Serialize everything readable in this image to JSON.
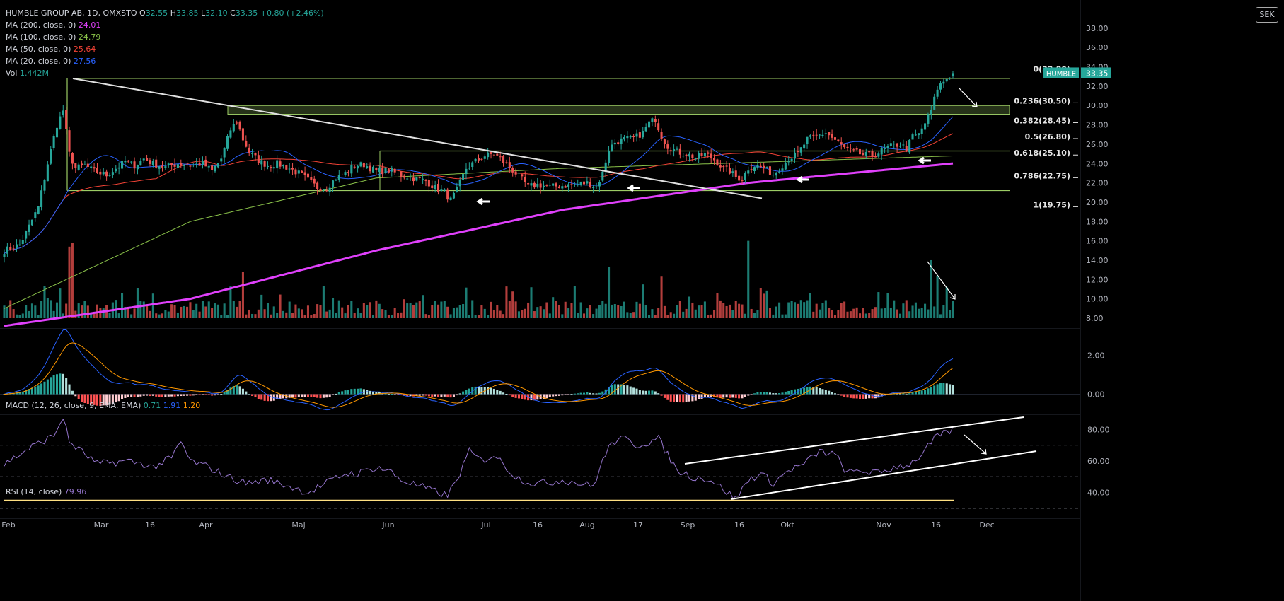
{
  "header": {
    "symbol": "HUMBLE GROUP AB, 1D, OMXSTO",
    "o_label": "O",
    "o": "32.55",
    "h_label": "H",
    "h": "33.85",
    "l_label": "L",
    "l": "32.10",
    "c_label": "C",
    "c": "33.35",
    "change": "+0.80 (+2.46%)"
  },
  "currency": "SEK",
  "indicators": [
    {
      "label": "MA (200, close, 0)",
      "value": "24.01",
      "color": "#e040fb"
    },
    {
      "label": "MA (100, close, 0)",
      "value": "24.79",
      "color": "#8bc34a"
    },
    {
      "label": "MA (50, close, 0)",
      "value": "25.64",
      "color": "#f44336"
    },
    {
      "label": "MA (20, close, 0)",
      "value": "27.56",
      "color": "#2962ff"
    },
    {
      "label": "Vol",
      "value": "1.442M",
      "color": "#26a69a"
    }
  ],
  "macd": {
    "label": "MACD (12, 26, close, 9, EMA, EMA)",
    "v1": "0.71",
    "v2": "1.91",
    "v3": "1.20",
    "ticks": [
      "2.00",
      "0.00"
    ]
  },
  "rsi": {
    "label": "RSI (14, close)",
    "value": "79.96",
    "ticks": [
      "80.00",
      "60.00",
      "40.00"
    ]
  },
  "price_badge": {
    "name": "HUMBLE",
    "value": "33.35"
  },
  "colors": {
    "up": "#26a69a",
    "down": "#ef5350",
    "ma200": "#e040fb",
    "ma100": "#8bc34a",
    "ma50": "#f44336",
    "ma20": "#2962ff",
    "box": "#9ccc65",
    "rsi": "#9575cd"
  },
  "chart_data": {
    "type": "candlestick",
    "x_ticks": [
      "Feb",
      "Mar",
      "16",
      "Apr",
      "Maj",
      "Jun",
      "Jul",
      "16",
      "Aug",
      "17",
      "Sep",
      "16",
      "Okt",
      "Nov",
      "16",
      "Dec"
    ],
    "y_ticks": [
      "38.00",
      "36.00",
      "34.00",
      "32.00",
      "30.00",
      "28.00",
      "26.00",
      "24.00",
      "22.00",
      "20.00",
      "18.00",
      "16.00",
      "14.00",
      "12.00",
      "10.00",
      "8.00"
    ],
    "ylim": [
      8,
      39
    ],
    "fib_levels": [
      {
        "label": "0(33.80)",
        "value": 33.8
      },
      {
        "label": "0.236(30.50)",
        "value": 30.5
      },
      {
        "label": "0.382(28.45)",
        "value": 28.45
      },
      {
        "label": "0.5(26.80)",
        "value": 26.8
      },
      {
        "label": "0.618(25.10)",
        "value": 25.1
      },
      {
        "label": "0.786(22.75)",
        "value": 22.75
      },
      {
        "label": "1(19.75)",
        "value": 19.75
      }
    ],
    "horizontal_levels": [
      32.8,
      30.0,
      29.1,
      25.3,
      21.2
    ],
    "close_anchors": [
      [
        0,
        15
      ],
      [
        5,
        15.6
      ],
      [
        8,
        17.5
      ],
      [
        11,
        19.5
      ],
      [
        14,
        24
      ],
      [
        17,
        28
      ],
      [
        19,
        29.5
      ],
      [
        21,
        25
      ],
      [
        23,
        23.5
      ],
      [
        26,
        23.8
      ],
      [
        29,
        23.2
      ],
      [
        33,
        22.8
      ],
      [
        36,
        23.5
      ],
      [
        39,
        24.2
      ],
      [
        42,
        23.8
      ],
      [
        45,
        24.5
      ],
      [
        48,
        24
      ],
      [
        52,
        23.6
      ],
      [
        56,
        24
      ],
      [
        60,
        23.8
      ],
      [
        64,
        24
      ],
      [
        67,
        23.2
      ],
      [
        70,
        24.5
      ],
      [
        73,
        27.5
      ],
      [
        75,
        28.4
      ],
      [
        77,
        26.5
      ],
      [
        79,
        25.2
      ],
      [
        82,
        24.3
      ],
      [
        85,
        23.8
      ],
      [
        88,
        24
      ],
      [
        92,
        23.5
      ],
      [
        96,
        22.8
      ],
      [
        99,
        22
      ],
      [
        101,
        21.5
      ],
      [
        104,
        21.5
      ],
      [
        107,
        22.5
      ],
      [
        110,
        23
      ],
      [
        113,
        23.8
      ],
      [
        116,
        23.9
      ],
      [
        120,
        23.2
      ],
      [
        124,
        23.3
      ],
      [
        128,
        22.8
      ],
      [
        132,
        22.5
      ],
      [
        136,
        22.2
      ],
      [
        139,
        21.5
      ],
      [
        142,
        21
      ],
      [
        144,
        20.2
      ],
      [
        146,
        21.2
      ],
      [
        149,
        23.5
      ],
      [
        152,
        24.2
      ],
      [
        155,
        24.8
      ],
      [
        158,
        25
      ],
      [
        160,
        24.5
      ],
      [
        163,
        23.6
      ],
      [
        166,
        22.7
      ],
      [
        169,
        21.6
      ],
      [
        172,
        21.8
      ],
      [
        176,
        21.6
      ],
      [
        180,
        21.7
      ],
      [
        184,
        21.8
      ],
      [
        188,
        22
      ],
      [
        191,
        21.6
      ],
      [
        193,
        23
      ],
      [
        195,
        25.5
      ],
      [
        197,
        26.2
      ],
      [
        200,
        26.5
      ],
      [
        203,
        26.6
      ],
      [
        206,
        27.2
      ],
      [
        208,
        28.2
      ],
      [
        210,
        28.6
      ],
      [
        212,
        26.8
      ],
      [
        214,
        25.8
      ],
      [
        217,
        25.2
      ],
      [
        220,
        25
      ],
      [
        223,
        24.6
      ],
      [
        226,
        25
      ],
      [
        229,
        24.4
      ],
      [
        232,
        23.5
      ],
      [
        234,
        23.2
      ],
      [
        236,
        22.6
      ],
      [
        238,
        22.4
      ],
      [
        240,
        23.5
      ],
      [
        242,
        23.8
      ],
      [
        245,
        23.5
      ],
      [
        248,
        22.9
      ],
      [
        250,
        23.5
      ],
      [
        253,
        24.5
      ],
      [
        256,
        25
      ],
      [
        259,
        26.5
      ],
      [
        262,
        26.8
      ],
      [
        265,
        27.2
      ],
      [
        268,
        26.4
      ],
      [
        271,
        25.6
      ],
      [
        274,
        25.2
      ],
      [
        277,
        24.9
      ],
      [
        280,
        24.8
      ],
      [
        283,
        25.3
      ],
      [
        286,
        25.8
      ],
      [
        289,
        26
      ],
      [
        291,
        25.5
      ],
      [
        293,
        26.8
      ],
      [
        295,
        27
      ],
      [
        297,
        28.2
      ],
      [
        299,
        29.5
      ],
      [
        301,
        31.8
      ],
      [
        303,
        32.5
      ],
      [
        305,
        33.1
      ],
      [
        306,
        33.35
      ]
    ],
    "volume_peaks": [
      [
        0,
        9.3
      ],
      [
        22,
        15.8
      ],
      [
        21,
        15.4
      ],
      [
        77,
        12.8
      ],
      [
        195,
        13.3
      ],
      [
        206,
        11.5
      ],
      [
        212,
        12.3
      ],
      [
        240,
        16
      ],
      [
        244,
        11.1
      ],
      [
        299,
        14
      ],
      [
        301,
        12.4
      ],
      [
        304,
        11.2
      ],
      [
        306,
        9.8
      ]
    ],
    "macd_range": [
      -1,
      3
    ],
    "rsi_range": [
      25,
      90
    ],
    "rsi_anchors": [
      [
        0,
        58
      ],
      [
        8,
        68
      ],
      [
        16,
        76
      ],
      [
        19,
        88
      ],
      [
        21,
        72
      ],
      [
        25,
        66
      ],
      [
        30,
        58
      ],
      [
        40,
        60
      ],
      [
        45,
        58
      ],
      [
        48,
        56
      ],
      [
        54,
        62
      ],
      [
        57,
        72
      ],
      [
        60,
        60
      ],
      [
        66,
        56
      ],
      [
        72,
        50
      ],
      [
        78,
        46
      ],
      [
        85,
        48
      ],
      [
        92,
        44
      ],
      [
        98,
        40
      ],
      [
        104,
        46
      ],
      [
        110,
        52
      ],
      [
        114,
        52
      ],
      [
        120,
        56
      ],
      [
        124,
        54
      ],
      [
        128,
        48
      ],
      [
        134,
        44
      ],
      [
        140,
        40
      ],
      [
        143,
        38
      ],
      [
        146,
        48
      ],
      [
        150,
        66
      ],
      [
        154,
        60
      ],
      [
        158,
        64
      ],
      [
        161,
        58
      ],
      [
        165,
        50
      ],
      [
        170,
        46
      ],
      [
        175,
        46
      ],
      [
        180,
        48
      ],
      [
        185,
        46
      ],
      [
        190,
        44
      ],
      [
        193,
        60
      ],
      [
        196,
        72
      ],
      [
        200,
        74
      ],
      [
        204,
        70
      ],
      [
        208,
        72
      ],
      [
        211,
        74
      ],
      [
        214,
        64
      ],
      [
        217,
        54
      ],
      [
        222,
        50
      ],
      [
        228,
        48
      ],
      [
        232,
        42
      ],
      [
        236,
        36
      ],
      [
        240,
        48
      ],
      [
        244,
        52
      ],
      [
        248,
        46
      ],
      [
        253,
        54
      ],
      [
        258,
        58
      ],
      [
        263,
        66
      ],
      [
        268,
        64
      ],
      [
        272,
        52
      ],
      [
        276,
        54
      ],
      [
        282,
        52
      ],
      [
        287,
        56
      ],
      [
        292,
        58
      ],
      [
        296,
        64
      ],
      [
        300,
        74
      ],
      [
        304,
        78
      ],
      [
        306,
        80
      ]
    ]
  }
}
